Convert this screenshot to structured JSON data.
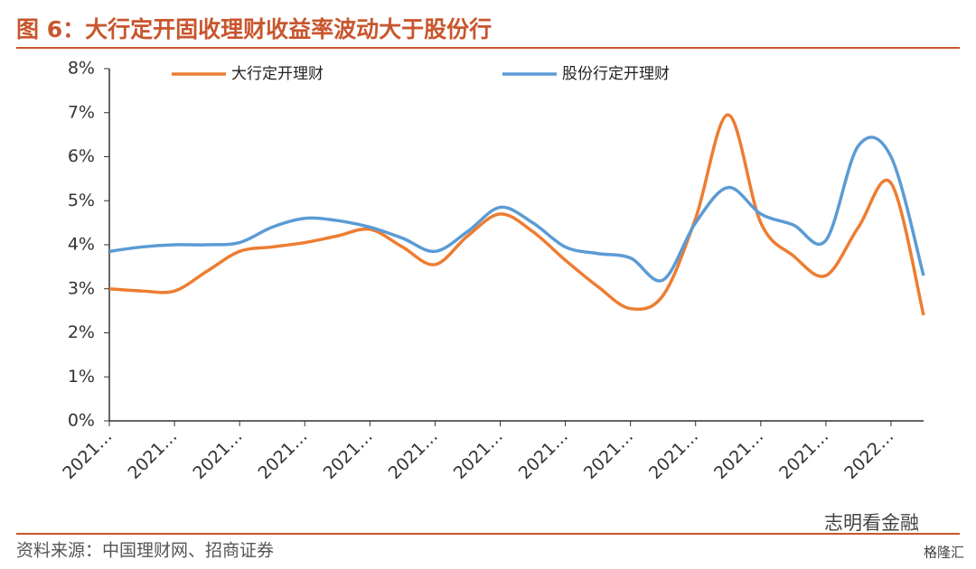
{
  "chart_data": {
    "type": "line",
    "title": "图 6：大行定开固收理财收益率波动大于股份行",
    "source": "资料来源：中国理财网、招商证券",
    "watermark": "志明看金融",
    "watermark2": "格隆汇",
    "categories": [
      "2021…",
      null,
      "2021…",
      null,
      "2021…",
      null,
      "2021…",
      null,
      "2021…",
      null,
      "2021…",
      null,
      "2021…",
      null,
      "2021…",
      null,
      "2021…",
      null,
      "2021…",
      null,
      "2021…",
      null,
      "2021…",
      null,
      "2022…",
      null
    ],
    "series": [
      {
        "name": "大行定开理财",
        "color": "#ed7d31",
        "values": [
          3.0,
          2.95,
          2.95,
          3.4,
          3.85,
          3.95,
          4.05,
          4.2,
          4.35,
          3.95,
          3.55,
          4.2,
          4.7,
          4.3,
          3.65,
          3.05,
          2.55,
          2.85,
          4.6,
          6.95,
          4.5,
          3.75,
          3.3,
          4.4,
          5.4,
          2.4
        ]
      },
      {
        "name": "股份行定开理财",
        "color": "#5b9bd5",
        "values": [
          3.85,
          3.95,
          4.0,
          4.0,
          4.05,
          4.4,
          4.6,
          4.55,
          4.4,
          4.15,
          3.85,
          4.3,
          4.85,
          4.5,
          3.95,
          3.8,
          3.7,
          3.2,
          4.5,
          5.3,
          4.7,
          4.45,
          4.1,
          6.25,
          6.0,
          3.3
        ]
      }
    ],
    "ylim": [
      0,
      8
    ],
    "yticks": [
      {
        "value": 0,
        "label": "0%"
      },
      {
        "value": 1,
        "label": "1%"
      },
      {
        "value": 2,
        "label": "2%"
      },
      {
        "value": 3,
        "label": "3%"
      },
      {
        "value": 4,
        "label": "4%"
      },
      {
        "value": 5,
        "label": "5%"
      },
      {
        "value": 6,
        "label": "6%"
      },
      {
        "value": 7,
        "label": "7%"
      },
      {
        "value": 8,
        "label": "8%"
      }
    ],
    "grid": false,
    "legend": "top"
  }
}
